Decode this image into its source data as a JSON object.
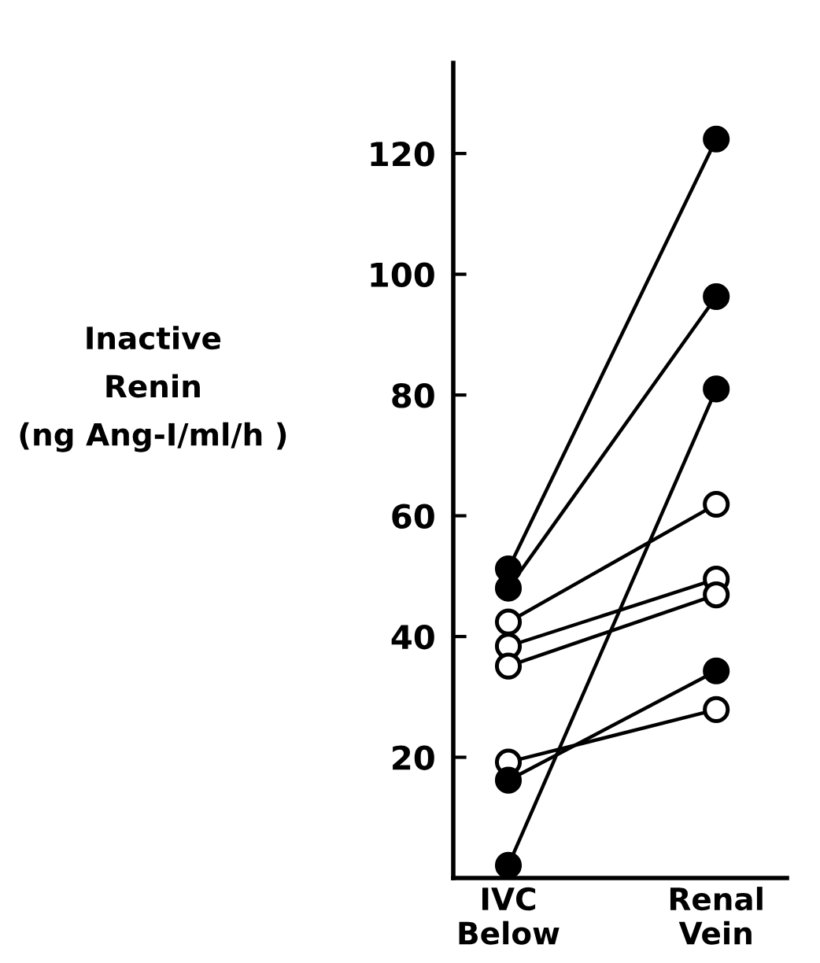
{
  "chart_data": {
    "type": "line",
    "ylabel": "Inactive\nRenin\n(ng Ang-I/ml/h )",
    "categories": [
      "IVC\nBelow",
      "Renal\nVein"
    ],
    "ylim": [
      0,
      135
    ],
    "yticks": [
      20,
      40,
      60,
      80,
      100,
      120
    ],
    "grid": false,
    "marker": "circle",
    "line_style": "solid",
    "series": [
      {
        "color": "#000000",
        "colors": [
          "#000000",
          "#000000"
        ],
        "values": [
          51.2,
          122.4
        ]
      },
      {
        "color": "#000000",
        "colors": [
          "#000000",
          "#000000"
        ],
        "values": [
          48,
          96.3
        ]
      },
      {
        "color": "#000000",
        "colors": [
          "#000000",
          "#000000"
        ],
        "values": [
          2.1,
          81
        ]
      },
      {
        "color": "#000000",
        "colors": [
          "#ffffff",
          "#ffffff"
        ],
        "values": [
          42.4,
          61.9
        ]
      },
      {
        "color": "#000000",
        "colors": [
          "#ffffff",
          "#ffffff"
        ],
        "values": [
          38.4,
          49.5
        ]
      },
      {
        "color": "#000000",
        "colors": [
          "#ffffff",
          "#ffffff"
        ],
        "values": [
          35.1,
          46.9
        ]
      },
      {
        "color": "#000000",
        "colors": [
          "#ffffff",
          "#ffffff"
        ],
        "values": [
          19.2,
          27.9
        ]
      },
      {
        "color": "#000000",
        "colors": [
          "#000000",
          "#000000"
        ],
        "values": [
          16.2,
          34.3
        ]
      }
    ]
  }
}
